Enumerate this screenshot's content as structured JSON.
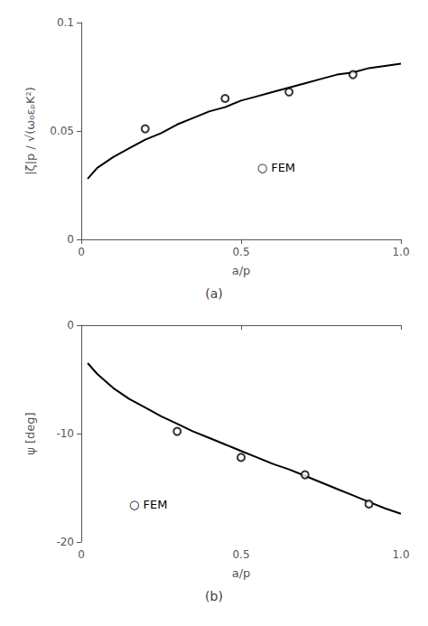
{
  "chart_data": [
    {
      "type": "line",
      "title": "(a)",
      "xlabel": "a/p",
      "ylabel": "|ζ|p / √(ω₀εₚK²)",
      "xlim": [
        0,
        1.0
      ],
      "ylim": [
        0,
        0.1
      ],
      "xticks": [
        0,
        0.5,
        {
          "value": 1.0,
          "label": "1.0"
        }
      ],
      "yticks": [
        0,
        0.05,
        0.1
      ],
      "grid": false,
      "series": [
        {
          "type": "line",
          "color": "#000000",
          "line_style": "solid",
          "x": [
            0.02,
            0.05,
            0.1,
            0.15,
            0.2,
            0.25,
            0.3,
            0.35,
            0.4,
            0.45,
            0.5,
            0.55,
            0.6,
            0.65,
            0.7,
            0.75,
            0.8,
            0.85,
            0.9,
            0.95,
            1.0
          ],
          "values": [
            0.028,
            0.033,
            0.038,
            0.042,
            0.046,
            0.049,
            0.053,
            0.056,
            0.059,
            0.061,
            0.064,
            0.066,
            0.068,
            0.07,
            0.072,
            0.074,
            0.076,
            0.077,
            0.079,
            0.08,
            0.081
          ]
        },
        {
          "type": "scatter",
          "color": "#000000",
          "marker": "open_circle",
          "x": [
            0.2,
            0.45,
            0.65,
            0.85
          ],
          "values": [
            0.051,
            0.065,
            0.068,
            0.076
          ]
        }
      ],
      "annotations": [
        {
          "text": "○ FEM",
          "x": 0.55,
          "y": 0.033,
          "color": "#000000"
        }
      ]
    },
    {
      "type": "line",
      "title": "(b)",
      "xlabel": "a/p",
      "ylabel": "ψ [deg]",
      "xlim": [
        0,
        1.0
      ],
      "ylim": [
        -20,
        0
      ],
      "xticks": [
        0,
        0.5,
        {
          "value": 1.0,
          "label": "1.0"
        }
      ],
      "yticks": [
        -20,
        -10,
        0
      ],
      "grid": false,
      "series": [
        {
          "type": "line",
          "color": "#000000",
          "line_style": "solid",
          "x": [
            0.02,
            0.05,
            0.1,
            0.15,
            0.2,
            0.25,
            0.3,
            0.35,
            0.4,
            0.45,
            0.5,
            0.55,
            0.6,
            0.65,
            0.7,
            0.75,
            0.8,
            0.85,
            0.9,
            0.95,
            1.0
          ],
          "values": [
            -3.5,
            -4.5,
            -5.8,
            -6.8,
            -7.6,
            -8.4,
            -9.1,
            -9.8,
            -10.4,
            -11.0,
            -11.6,
            -12.2,
            -12.8,
            -13.3,
            -13.9,
            -14.5,
            -15.1,
            -15.7,
            -16.3,
            -16.9,
            -17.4
          ]
        },
        {
          "type": "scatter",
          "color": "#000000",
          "marker": "open_circle",
          "x": [
            0.3,
            0.5,
            0.7,
            0.9
          ],
          "values": [
            -9.8,
            -12.2,
            -13.8,
            -16.5
          ]
        }
      ],
      "annotations": [
        {
          "text": "○ FEM",
          "x": 0.15,
          "y": -16.5,
          "color": "#000000"
        }
      ]
    }
  ]
}
